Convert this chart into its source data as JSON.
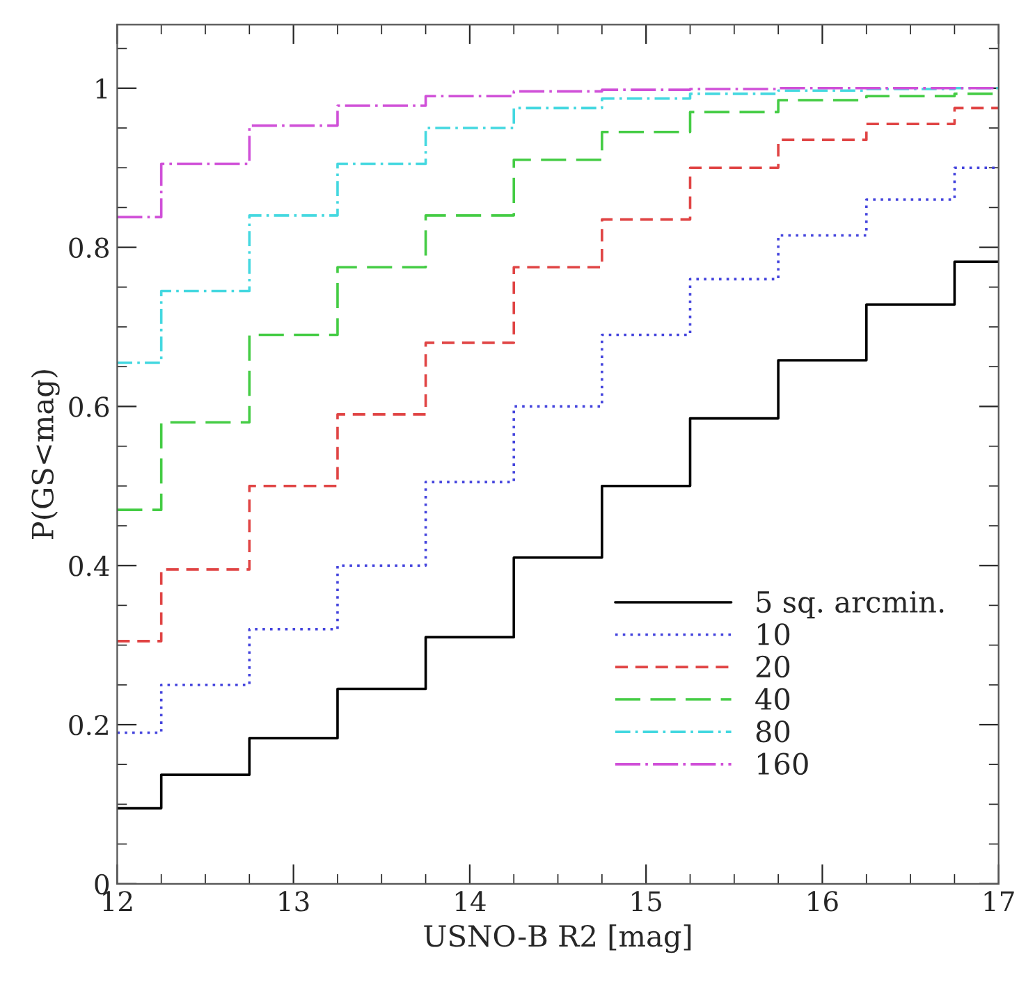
{
  "chart_data": {
    "type": "step",
    "xlabel": "USNO-B R2 [mag]",
    "ylabel": "P(GS<mag)",
    "x": [
      12,
      12.25,
      12.75,
      13.25,
      13.75,
      14.25,
      14.75,
      15.25,
      15.75,
      16.25,
      16.75,
      17
    ],
    "series": [
      {
        "name": "5 sq. arcmin.",
        "color": "#000000",
        "line_style": "solid",
        "values": [
          0.095,
          0.137,
          0.183,
          0.245,
          0.31,
          0.41,
          0.5,
          0.585,
          0.658,
          0.728,
          0.782,
          0.782
        ]
      },
      {
        "name": "10",
        "color": "#4444dd",
        "line_style": "dotted",
        "values": [
          0.19,
          0.25,
          0.32,
          0.4,
          0.505,
          0.6,
          0.69,
          0.76,
          0.815,
          0.86,
          0.9,
          0.9
        ]
      },
      {
        "name": "20",
        "color": "#e04444",
        "line_style": "dashed",
        "values": [
          0.305,
          0.395,
          0.5,
          0.59,
          0.68,
          0.775,
          0.835,
          0.9,
          0.935,
          0.955,
          0.975,
          0.975
        ]
      },
      {
        "name": "40",
        "color": "#44cc44",
        "line_style": "longdash",
        "values": [
          0.47,
          0.58,
          0.69,
          0.775,
          0.84,
          0.91,
          0.945,
          0.97,
          0.985,
          0.99,
          0.993,
          0.993
        ]
      },
      {
        "name": "80",
        "color": "#44d8e0",
        "line_style": "dashdot",
        "values": [
          0.655,
          0.745,
          0.84,
          0.905,
          0.95,
          0.975,
          0.987,
          0.993,
          0.997,
          0.999,
          1.0,
          1.0
        ]
      },
      {
        "name": "160",
        "color": "#d050d8",
        "line_style": "longdashdot",
        "values": [
          0.838,
          0.905,
          0.953,
          0.978,
          0.99,
          0.996,
          0.998,
          0.999,
          1.0,
          1.0,
          1.0,
          1.0
        ]
      }
    ],
    "xlim": [
      12,
      17
    ],
    "xticks": [
      12,
      13,
      14,
      15,
      16,
      17
    ],
    "ylim": [
      0,
      1.08
    ],
    "yticks": [
      0,
      0.2,
      0.4,
      0.6,
      0.8,
      1
    ],
    "grid": false,
    "legend": "bottom right"
  }
}
